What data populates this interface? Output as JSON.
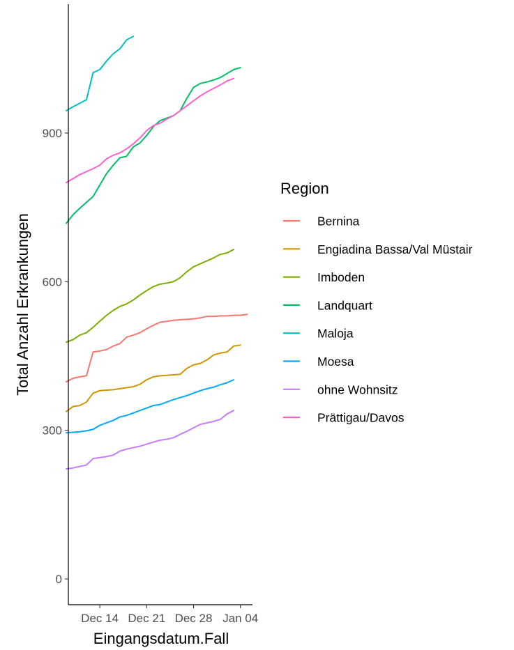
{
  "chart_data": {
    "type": "line",
    "xlabel": "Eingangsdatum.Fall",
    "ylabel": "Total Anzahl Erkrankungen",
    "x_ticks": [
      "Dec 14",
      "Dec 21",
      "Dec 28",
      "Jan 04"
    ],
    "x_tick_days": [
      5,
      12,
      19,
      26
    ],
    "y_ticks": [
      0,
      300,
      600,
      900
    ],
    "xlim": [
      0.3,
      27.8
    ],
    "ylim": [
      -52,
      1160
    ],
    "grid": false,
    "legend_title": "Region",
    "legend_position": "right",
    "x_dates": [
      "Dec 09",
      "Dec 10",
      "Dec 11",
      "Dec 12",
      "Dec 13",
      "Dec 14",
      "Dec 15",
      "Dec 16",
      "Dec 17",
      "Dec 18",
      "Dec 19",
      "Dec 20",
      "Dec 21",
      "Dec 22",
      "Dec 23",
      "Dec 24",
      "Dec 25",
      "Dec 26",
      "Dec 27",
      "Dec 28",
      "Dec 29",
      "Dec 30",
      "Dec 31",
      "Jan 01",
      "Jan 02",
      "Jan 03",
      "Jan 04",
      "Jan 05"
    ],
    "series": [
      {
        "name": "Bernina",
        "color": "#F8766D",
        "values": [
          398,
          405,
          408,
          410,
          458,
          460,
          463,
          470,
          475,
          488,
          492,
          497,
          505,
          512,
          518,
          520,
          522,
          523,
          524,
          525,
          527,
          530,
          530,
          531,
          531,
          532,
          532,
          534
        ]
      },
      {
        "name": "Engiadina Bassa/Val Müstair",
        "color": "#CD9600",
        "values": [
          338,
          348,
          350,
          357,
          375,
          380,
          381,
          382,
          384,
          386,
          388,
          393,
          402,
          408,
          410,
          411,
          412,
          413,
          425,
          432,
          435,
          442,
          452,
          456,
          458,
          470,
          472,
          null
        ]
      },
      {
        "name": "Imboden",
        "color": "#7CAE00",
        "values": [
          478,
          483,
          492,
          497,
          508,
          520,
          532,
          542,
          550,
          555,
          563,
          573,
          582,
          590,
          595,
          597,
          600,
          608,
          620,
          630,
          636,
          642,
          648,
          655,
          658,
          665,
          null,
          null
        ]
      },
      {
        "name": "Landquart",
        "color": "#00BE67",
        "values": [
          718,
          735,
          748,
          760,
          772,
          795,
          818,
          835,
          850,
          853,
          872,
          880,
          895,
          913,
          925,
          930,
          935,
          945,
          970,
          992,
          1000,
          1003,
          1007,
          1012,
          1020,
          1028,
          1032,
          null
        ]
      },
      {
        "name": "Maloja",
        "color": "#00BFC4",
        "values": [
          945,
          953,
          960,
          967,
          1022,
          1028,
          1045,
          1060,
          1070,
          1088,
          1095,
          null,
          null,
          null,
          null,
          null,
          null,
          null,
          null,
          null,
          null,
          null,
          null,
          null,
          null,
          null,
          null,
          null
        ]
      },
      {
        "name": "Moesa",
        "color": "#00A9FF",
        "values": [
          295,
          296,
          297,
          299,
          302,
          310,
          315,
          320,
          327,
          330,
          335,
          340,
          345,
          350,
          352,
          357,
          362,
          366,
          370,
          375,
          380,
          384,
          387,
          392,
          396,
          402,
          null,
          null
        ]
      },
      {
        "name": "ohne Wohnsitz",
        "color": "#C77CFF",
        "values": [
          222,
          224,
          227,
          230,
          243,
          245,
          247,
          250,
          258,
          262,
          265,
          268,
          272,
          276,
          280,
          282,
          285,
          292,
          298,
          305,
          312,
          315,
          318,
          322,
          333,
          340,
          null,
          null
        ]
      },
      {
        "name": "Prättigau/Davos",
        "color": "#FF61CC",
        "values": [
          800,
          808,
          816,
          822,
          828,
          835,
          848,
          855,
          860,
          868,
          878,
          890,
          905,
          915,
          920,
          928,
          935,
          945,
          955,
          965,
          975,
          983,
          990,
          997,
          1005,
          1010,
          null,
          null
        ]
      }
    ]
  }
}
